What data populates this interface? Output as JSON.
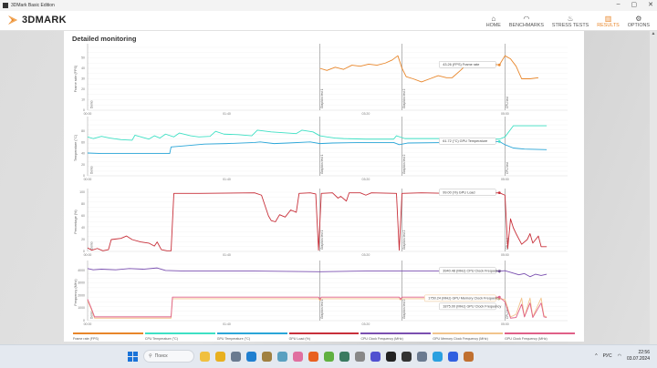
{
  "window": {
    "title": "3DMark Basic Edition",
    "controls": [
      "–",
      "▢",
      "✕"
    ]
  },
  "logo": {
    "text": "3DMARK"
  },
  "nav": [
    {
      "label": "HOME",
      "icon": "home-icon",
      "glyph": "⌂",
      "active": false
    },
    {
      "label": "BENCHMARKS",
      "icon": "gauge-icon",
      "glyph": "◠",
      "active": false
    },
    {
      "label": "STRESS TESTS",
      "icon": "stress-icon",
      "glyph": "♨",
      "active": false
    },
    {
      "label": "RESULTS",
      "icon": "bar-chart-icon",
      "glyph": "▥",
      "active": true
    },
    {
      "label": "OPTIONS",
      "icon": "gear-icon",
      "glyph": "⚙",
      "active": false
    }
  ],
  "section": {
    "title": "Detailed monitoring"
  },
  "colors": {
    "accent": "#e8862a",
    "fps": "#e8862a",
    "cpu_temp": "#3ee0c4",
    "gpu_temp": "#2aa6d8",
    "gpu_load": "#c8303a",
    "cpu_clock": "#7a4fb0",
    "gpu_mem_clock": "#f2c48c",
    "gpu_clock": "#e06088"
  },
  "chart_data": [
    {
      "type": "line",
      "ylabel": "Frame rate (FPS)",
      "ylim": [
        0,
        60
      ],
      "yticks": [
        0,
        10,
        20,
        30,
        40,
        50
      ],
      "xlim": [
        0,
        345
      ],
      "xticks": [
        "00:00",
        "01:40",
        "03:20",
        "05:00"
      ],
      "series": [
        {
          "name": "Frame rate (FPS)",
          "color": "#e8862a",
          "points": [
            [
              167,
              40
            ],
            [
              172,
              38
            ],
            [
              178,
              41
            ],
            [
              184,
              39
            ],
            [
              190,
              43
            ],
            [
              196,
              42
            ],
            [
              202,
              44
            ],
            [
              208,
              43
            ],
            [
              214,
              45
            ],
            [
              219,
              48
            ],
            [
              223,
              52
            ],
            [
              226,
              40
            ],
            [
              229,
              32
            ],
            [
              234,
              30
            ],
            [
              240,
              27
            ],
            [
              246,
              30
            ],
            [
              252,
              33
            ],
            [
              258,
              31
            ],
            [
              262,
              31
            ],
            [
              268,
              38
            ],
            [
              272,
              43
            ],
            [
              276,
              46
            ],
            [
              280,
              42
            ],
            [
              284,
              45
            ],
            [
              290,
              44
            ],
            [
              296,
              43.26
            ],
            [
              300,
              52
            ],
            [
              304,
              49
            ],
            [
              308,
              42
            ],
            [
              312,
              30
            ],
            [
              318,
              30
            ],
            [
              324,
              31
            ]
          ]
        }
      ],
      "tooltip": {
        "t": 296,
        "value": 43.26,
        "text": "43.26 (FPS) Frame rate"
      }
    },
    {
      "type": "line",
      "ylabel": "Temperature (°C)",
      "ylim": [
        0,
        100
      ],
      "yticks": [
        0,
        20,
        40,
        60,
        80
      ],
      "xlim": [
        0,
        345
      ],
      "xticks": [
        "00:00",
        "01:40",
        "03:20",
        "05:00"
      ],
      "series": [
        {
          "name": "CPU Temperature (°C)",
          "color": "#3ee0c4",
          "points": [
            [
              0,
              70
            ],
            [
              4,
              67
            ],
            [
              10,
              71
            ],
            [
              16,
              68
            ],
            [
              24,
              65
            ],
            [
              32,
              64
            ],
            [
              34,
              73
            ],
            [
              44,
              66
            ],
            [
              48,
              72
            ],
            [
              52,
              68
            ],
            [
              56,
              75
            ],
            [
              62,
              70
            ],
            [
              66,
              77
            ],
            [
              74,
              72
            ],
            [
              80,
              70
            ],
            [
              88,
              71
            ],
            [
              92,
              80
            ],
            [
              98,
              75
            ],
            [
              108,
              74
            ],
            [
              118,
              72
            ],
            [
              122,
              82
            ],
            [
              132,
              79
            ],
            [
              144,
              77
            ],
            [
              150,
              76
            ],
            [
              154,
              82
            ],
            [
              162,
              79
            ],
            [
              167,
              72
            ],
            [
              172,
              70
            ],
            [
              178,
              68
            ],
            [
              184,
              67
            ],
            [
              200,
              66
            ],
            [
              220,
              66
            ],
            [
              222,
              72
            ],
            [
              228,
              67
            ],
            [
              260,
              67
            ],
            [
              296,
              66
            ],
            [
              300,
              70
            ],
            [
              306,
              90
            ],
            [
              312,
              90
            ],
            [
              330,
              90
            ]
          ]
        },
        {
          "name": "GPU Temperature (°C)",
          "color": "#2aa6d8",
          "points": [
            [
              0,
              41
            ],
            [
              10,
              40
            ],
            [
              59,
              40
            ],
            [
              60,
              52
            ],
            [
              70,
              54
            ],
            [
              84,
              57
            ],
            [
              100,
              58
            ],
            [
              120,
              60
            ],
            [
              124,
              61
            ],
            [
              134,
              58
            ],
            [
              144,
              59
            ],
            [
              160,
              61
            ],
            [
              167,
              58
            ],
            [
              176,
              59
            ],
            [
              200,
              60
            ],
            [
              220,
              60
            ],
            [
              224,
              56
            ],
            [
              230,
              59
            ],
            [
              260,
              60
            ],
            [
              296,
              61.72
            ],
            [
              300,
              56
            ],
            [
              306,
              50
            ],
            [
              314,
              48
            ],
            [
              330,
              47
            ]
          ]
        }
      ],
      "tooltip": {
        "t": 296,
        "value": 61.72,
        "text": "61.72 (°C) GPU Temperature"
      }
    },
    {
      "type": "line",
      "ylabel": "Percentage (%)",
      "ylim": [
        0,
        100
      ],
      "yticks": [
        0,
        20,
        40,
        60,
        80,
        100
      ],
      "xlim": [
        0,
        345
      ],
      "xticks": [
        "00:00",
        "01:40",
        "03:20",
        "05:00"
      ],
      "series": [
        {
          "name": "GPU Load (%)",
          "color": "#c8303a",
          "points": [
            [
              0,
              6
            ],
            [
              3,
              2
            ],
            [
              7,
              5
            ],
            [
              11,
              1
            ],
            [
              15,
              3
            ],
            [
              17,
              20
            ],
            [
              24,
              22
            ],
            [
              28,
              26
            ],
            [
              32,
              20
            ],
            [
              38,
              16
            ],
            [
              44,
              14
            ],
            [
              48,
              9
            ],
            [
              50,
              16
            ],
            [
              53,
              3
            ],
            [
              57,
              1
            ],
            [
              60,
              1
            ],
            [
              62,
              98
            ],
            [
              80,
              98
            ],
            [
              120,
              99
            ],
            [
              125,
              95
            ],
            [
              130,
              60
            ],
            [
              132,
              52
            ],
            [
              135,
              50
            ],
            [
              138,
              62
            ],
            [
              142,
              58
            ],
            [
              146,
              70
            ],
            [
              150,
              66
            ],
            [
              152,
              98
            ],
            [
              160,
              99
            ],
            [
              164,
              97
            ],
            [
              166,
              2
            ],
            [
              168,
              98
            ],
            [
              176,
              99
            ],
            [
              180,
              90
            ],
            [
              182,
              93
            ],
            [
              186,
              85
            ],
            [
              188,
              99
            ],
            [
              196,
              99
            ],
            [
              200,
              95
            ],
            [
              204,
              99
            ],
            [
              222,
              98
            ],
            [
              224,
              2
            ],
            [
              226,
              98
            ],
            [
              240,
              99
            ],
            [
              260,
              98
            ],
            [
              296,
              99
            ],
            [
              300,
              95
            ],
            [
              302,
              5
            ],
            [
              304,
              55
            ],
            [
              306,
              40
            ],
            [
              308,
              30
            ],
            [
              312,
              12
            ],
            [
              316,
              20
            ],
            [
              318,
              30
            ],
            [
              320,
              14
            ],
            [
              324,
              26
            ],
            [
              326,
              8
            ],
            [
              330,
              8
            ]
          ]
        }
      ],
      "tooltip": {
        "t": 296,
        "value": 99.0,
        "text": "99.00 (%) GPU Load"
      }
    },
    {
      "type": "line",
      "ylabel": "Frequency (MHz)",
      "ylim": [
        0,
        4500
      ],
      "yticks": [
        0,
        1000,
        2000,
        3000,
        4000
      ],
      "xlim": [
        0,
        345
      ],
      "xticks": [
        "00:00",
        "01:40",
        "03:20",
        "05:00"
      ],
      "series": [
        {
          "name": "CPU Clock Frequency (MHz)",
          "color": "#7a4fb0",
          "points": [
            [
              0,
              4150
            ],
            [
              4,
              4050
            ],
            [
              10,
              4100
            ],
            [
              20,
              4050
            ],
            [
              30,
              4150
            ],
            [
              40,
              4100
            ],
            [
              50,
              4200
            ],
            [
              56,
              4000
            ],
            [
              70,
              3950
            ],
            [
              120,
              3950
            ],
            [
              167,
              3900
            ],
            [
              200,
              3950
            ],
            [
              250,
              3950
            ],
            [
              296,
              3940.48
            ],
            [
              300,
              3980
            ],
            [
              304,
              3850
            ],
            [
              310,
              3650
            ],
            [
              314,
              3750
            ],
            [
              318,
              3500
            ],
            [
              322,
              3700
            ],
            [
              326,
              3600
            ],
            [
              330,
              3700
            ]
          ]
        },
        {
          "name": "GPU Memory Clock Frequency (MHz)",
          "color": "#f2c48c",
          "points": [
            [
              0,
              1600
            ],
            [
              3,
              800
            ],
            [
              5,
              200
            ],
            [
              60,
              200
            ],
            [
              61,
              1750
            ],
            [
              166,
              1750
            ],
            [
              167,
              1600
            ],
            [
              168,
              1750
            ],
            [
              224,
              1750
            ],
            [
              225,
              1650
            ],
            [
              226,
              1750
            ],
            [
              296,
              1750.24
            ],
            [
              300,
              1700
            ],
            [
              304,
              300
            ],
            [
              308,
              500
            ],
            [
              312,
              1800
            ],
            [
              314,
              300
            ],
            [
              318,
              1800
            ],
            [
              320,
              300
            ],
            [
              326,
              1800
            ],
            [
              328,
              400
            ],
            [
              330,
              300
            ]
          ]
        },
        {
          "name": "GPU Clock Frequency (MHz)",
          "color": "#e06088",
          "points": [
            [
              0,
              1700
            ],
            [
              3,
              900
            ],
            [
              5,
              300
            ],
            [
              60,
              300
            ],
            [
              61,
              1875
            ],
            [
              166,
              1875
            ],
            [
              167,
              1700
            ],
            [
              168,
              1875
            ],
            [
              224,
              1875
            ],
            [
              225,
              1700
            ],
            [
              226,
              1875
            ],
            [
              296,
              1875.0
            ],
            [
              300,
              1500
            ],
            [
              304,
              200
            ],
            [
              308,
              250
            ],
            [
              312,
              1300
            ],
            [
              314,
              300
            ],
            [
              318,
              1400
            ],
            [
              320,
              250
            ],
            [
              326,
              1400
            ],
            [
              328,
              300
            ],
            [
              330,
              250
            ]
          ]
        }
      ],
      "tooltip": {
        "t": 296,
        "items": [
          {
            "value": 3940.48,
            "text": "3940.48 (MHz) CPU Clock Frequency"
          },
          {
            "value": 1750.24,
            "text": "1750.24 (MHz) GPU Memory Clock Frequency"
          },
          {
            "value": 1875.0,
            "text": "1875.00 (MHz) GPU Clock Frequency"
          }
        ]
      }
    }
  ],
  "markers": [
    {
      "t": 0,
      "label": "Demo"
    },
    {
      "t": 167,
      "label": "Graphics test 1"
    },
    {
      "t": 226,
      "label": "Graphics test 2"
    },
    {
      "t": 300,
      "label": "CPU test"
    }
  ],
  "legend": [
    {
      "label": "Frame rate (FPS)",
      "color": "#e8862a"
    },
    {
      "label": "CPU Temperature (°C)",
      "color": "#3ee0c4"
    },
    {
      "label": "GPU Temperature (°C)",
      "color": "#2aa6d8"
    },
    {
      "label": "GPU Load (%)",
      "color": "#c8303a"
    },
    {
      "label": "CPU Clock Frequency (MHz)",
      "color": "#7a4fb0"
    },
    {
      "label": "GPU Memory Clock Frequency (MHz)",
      "color": "#f2c48c"
    },
    {
      "label": "GPU Clock Frequency (MHz)",
      "color": "#e06088"
    }
  ],
  "taskbar": {
    "search_placeholder": "Поиск",
    "language": "РУС",
    "time": "22:56",
    "date": "03.07.2024",
    "apps": [
      "#f0c040",
      "#e8b020",
      "#6a7a90",
      "#1f7fd0",
      "#a08040",
      "#5aa0c0",
      "#e070a0",
      "#e86020",
      "#60b040",
      "#3a7a60",
      "#888",
      "#5050d0",
      "#222",
      "#333",
      "#6a7a90",
      "#2aa0e0",
      "#3060e0",
      "#c07030"
    ]
  }
}
